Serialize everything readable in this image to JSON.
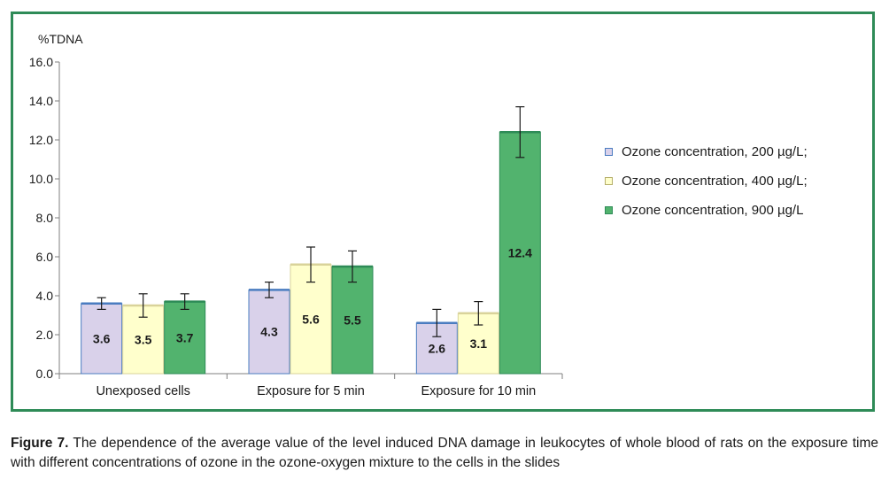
{
  "chart_data": {
    "type": "bar",
    "ylabel": "%TDNA",
    "ylim": [
      0,
      16
    ],
    "yticks": [
      "0.0",
      "2.0",
      "4.0",
      "6.0",
      "8.0",
      "10.0",
      "12.0",
      "14.0",
      "16.0"
    ],
    "categories": [
      "Unexposed cells",
      "Exposure for 5 min",
      "Exposure for 10 min"
    ],
    "series": [
      {
        "name": "Ozone concentration, 200 µg/L;",
        "values": [
          3.6,
          4.3,
          2.6
        ],
        "labels": [
          "3.6",
          "4.3",
          "2.6"
        ],
        "errors": [
          0.3,
          0.4,
          0.7
        ],
        "color": "#d9d1ea",
        "edge": "#4a7cc0"
      },
      {
        "name": "Ozone concentration, 400 µg/L;",
        "values": [
          3.5,
          5.6,
          3.1
        ],
        "labels": [
          "3.5",
          "5.6",
          "3.1"
        ],
        "errors": [
          0.6,
          0.9,
          0.6
        ],
        "color": "#ffffcc",
        "edge": "#d9d39a"
      },
      {
        "name": "Ozone concentration, 900 µg/L",
        "values": [
          3.7,
          5.5,
          12.4
        ],
        "labels": [
          "3.7",
          "5.5",
          "12.4"
        ],
        "errors": [
          0.4,
          0.8,
          1.3
        ],
        "color": "#52b36e",
        "edge": "#2e8b57"
      }
    ],
    "legend_position": "right",
    "grid": false
  },
  "caption": {
    "label": "Figure 7.",
    "text": "The dependence of the average value of the level induced DNA damage in leukocytes of whole blood of rats on the exposure time with different concentrations of ozone in the ozone-oxygen mixture to the cells in the slides"
  }
}
